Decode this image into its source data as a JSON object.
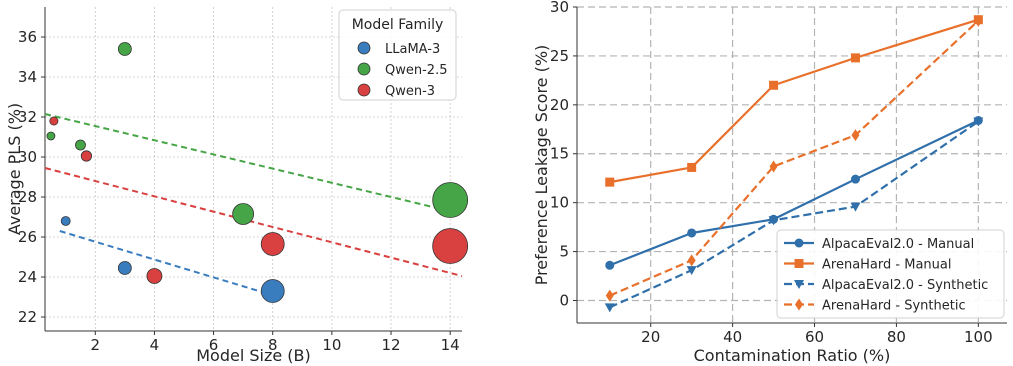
{
  "chart_data": [
    {
      "type": "scatter",
      "title": "",
      "xlabel": "Model Size (B)",
      "ylabel": "Average PLS (%)",
      "xlim": [
        0.3,
        14.4
      ],
      "ylim": [
        21.3,
        37.5
      ],
      "xticks": [
        2,
        4,
        6,
        8,
        10,
        12,
        14
      ],
      "yticks": [
        22,
        24,
        26,
        28,
        30,
        32,
        34,
        36
      ],
      "grid": true,
      "grid_style": "dotted",
      "legend": {
        "title": "Model Family",
        "placement": "top-right"
      },
      "series": [
        {
          "name": "LLaMA-3",
          "color": "#3a7dbf",
          "points": [
            {
              "x": 1,
              "y": 26.8,
              "size": 1
            },
            {
              "x": 3,
              "y": 24.45,
              "size": 3
            },
            {
              "x": 8,
              "y": 23.3,
              "size": 8
            }
          ],
          "trend": {
            "x": [
              0.8,
              8.2
            ],
            "y": [
              26.3,
              23.0
            ]
          }
        },
        {
          "name": "Qwen-2.5",
          "color": "#46a546",
          "points": [
            {
              "x": 0.5,
              "y": 31.05,
              "size": 0.5
            },
            {
              "x": 1.5,
              "y": 30.6,
              "size": 1.5
            },
            {
              "x": 3,
              "y": 35.4,
              "size": 3
            },
            {
              "x": 7,
              "y": 27.15,
              "size": 7
            },
            {
              "x": 14,
              "y": 27.85,
              "size": 14
            }
          ],
          "trend": {
            "x": [
              0.3,
              14.4
            ],
            "y": [
              32.15,
              27.15
            ]
          }
        },
        {
          "name": "Qwen-3",
          "color": "#d94040",
          "points": [
            {
              "x": 0.6,
              "y": 31.8,
              "size": 0.6
            },
            {
              "x": 1.7,
              "y": 30.05,
              "size": 1.7
            },
            {
              "x": 4,
              "y": 24.05,
              "size": 4
            },
            {
              "x": 8,
              "y": 25.65,
              "size": 8
            },
            {
              "x": 14,
              "y": 25.55,
              "size": 14
            }
          ],
          "trend": {
            "x": [
              0.3,
              14.4
            ],
            "y": [
              29.45,
              24.05
            ]
          }
        }
      ]
    },
    {
      "type": "line",
      "title": "",
      "xlabel": "Contamination Ratio (%)",
      "ylabel": "Preference Leakage Score (%)",
      "xlim": [
        2,
        107
      ],
      "ylim": [
        -2.3,
        30
      ],
      "xticks": [
        20,
        40,
        60,
        80,
        100
      ],
      "yticks": [
        0,
        5,
        10,
        15,
        20,
        25,
        30
      ],
      "grid": true,
      "grid_style": "dashed",
      "legend": {
        "placement": "bottom-right"
      },
      "x": [
        10,
        30,
        50,
        70,
        100
      ],
      "series": [
        {
          "name": "AlpacaEval2.0 - Manual",
          "color": "#2f6faa",
          "dash": "solid",
          "marker": "circle",
          "values": [
            3.6,
            6.9,
            8.3,
            12.4,
            18.4
          ]
        },
        {
          "name": "ArenaHard - Manual",
          "color": "#e8702a",
          "dash": "solid",
          "marker": "square",
          "values": [
            12.1,
            13.6,
            22.0,
            24.8,
            28.7
          ]
        },
        {
          "name": "AlpacaEval2.0 - Synthetic",
          "color": "#2f6faa",
          "dash": "dashed",
          "marker": "triangle-down",
          "values": [
            -0.7,
            3.1,
            8.2,
            9.6,
            18.3
          ]
        },
        {
          "name": "ArenaHard - Synthetic",
          "color": "#e8702a",
          "dash": "dashed",
          "marker": "diamond",
          "values": [
            0.5,
            4.1,
            13.7,
            16.9,
            28.6
          ]
        }
      ]
    }
  ]
}
